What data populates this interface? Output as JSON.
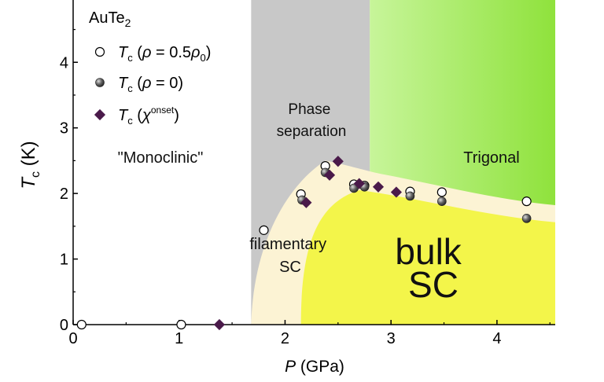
{
  "chart_data": {
    "type": "scatter",
    "xlabel": "P (GPa)",
    "ylabel": "Tc (K)",
    "xlim": [
      0,
      4.55
    ],
    "ylim": [
      0,
      4.95
    ],
    "x_ticks": [
      0,
      1,
      2,
      3,
      4
    ],
    "y_ticks": [
      0,
      1,
      2,
      3,
      4
    ],
    "x_tick_labels": [
      "0",
      "1",
      "2",
      "3",
      "4"
    ],
    "y_tick_labels": [
      "0",
      "1",
      "2",
      "3",
      "4"
    ],
    "axis_title": {
      "x_italic": "P",
      "x_rest": " (GPa)",
      "y_italic": "T",
      "y_sub": "c",
      "y_rest": " (K)"
    },
    "legend": {
      "position": "top-left",
      "header_main": "AuTe",
      "header_sub": "2",
      "entries": [
        {
          "series": "open",
          "T": "T",
          "sub": "c",
          "paren_open": " (",
          "greek": "ρ",
          "mid": " = 0.5",
          "greek2": "ρ",
          "greek2_sub": "0",
          "paren_close": ")"
        },
        {
          "series": "filled",
          "T": "T",
          "sub": "c",
          "paren_open": " (",
          "greek": "ρ",
          "mid": " = 0",
          "paren_close": ")"
        },
        {
          "series": "diamond",
          "T": "T",
          "sub": "c",
          "paren_open": " (",
          "greek": "χ",
          "sup": "onset",
          "paren_close": ")"
        }
      ]
    },
    "series": [
      {
        "key": "open",
        "marker": "open-circle",
        "points": [
          [
            0.08,
            0.0
          ],
          [
            1.02,
            0.0
          ],
          [
            1.8,
            1.44
          ],
          [
            2.15,
            1.99
          ],
          [
            2.38,
            2.42
          ],
          [
            2.65,
            2.14
          ],
          [
            2.75,
            2.12
          ],
          [
            3.18,
            2.03
          ],
          [
            3.48,
            2.02
          ],
          [
            4.28,
            1.88
          ]
        ]
      },
      {
        "key": "filled",
        "marker": "filled-circle",
        "points": [
          [
            2.16,
            1.9
          ],
          [
            2.38,
            2.32
          ],
          [
            2.65,
            2.08
          ],
          [
            2.75,
            2.1
          ],
          [
            3.18,
            1.96
          ],
          [
            3.48,
            1.88
          ],
          [
            4.28,
            1.62
          ]
        ]
      },
      {
        "key": "diamond",
        "marker": "diamond",
        "points": [
          [
            1.38,
            0.0
          ],
          [
            2.2,
            1.86
          ],
          [
            2.42,
            2.28
          ],
          [
            2.5,
            2.49
          ],
          [
            2.7,
            2.15
          ],
          [
            2.88,
            2.1
          ],
          [
            3.05,
            2.02
          ]
        ]
      }
    ],
    "regions": {
      "phase_separation_x": [
        1.68,
        2.8
      ],
      "trigonal_start_x": 2.8
    },
    "region_labels": [
      {
        "name": "monoclinic",
        "text": "\"Monoclinic\""
      },
      {
        "name": "phase-separation",
        "lines": [
          "Phase",
          "separation"
        ]
      },
      {
        "name": "trigonal",
        "text": "Trigonal"
      },
      {
        "name": "filamentary-sc",
        "lines": [
          "filamentary",
          "SC"
        ]
      },
      {
        "name": "bulk-sc",
        "lines": [
          "bulk",
          "SC"
        ]
      }
    ],
    "colors": {
      "phase_separation": "#c8c8c8",
      "trigonal_light": "#c7f59a",
      "trigonal_dark": "#8fe23c",
      "filamentary_sc": "#fcf3d4",
      "bulk_sc": "#f3f54a",
      "diamond": "#4a1a4a",
      "filled_circle": "#555555"
    }
  }
}
